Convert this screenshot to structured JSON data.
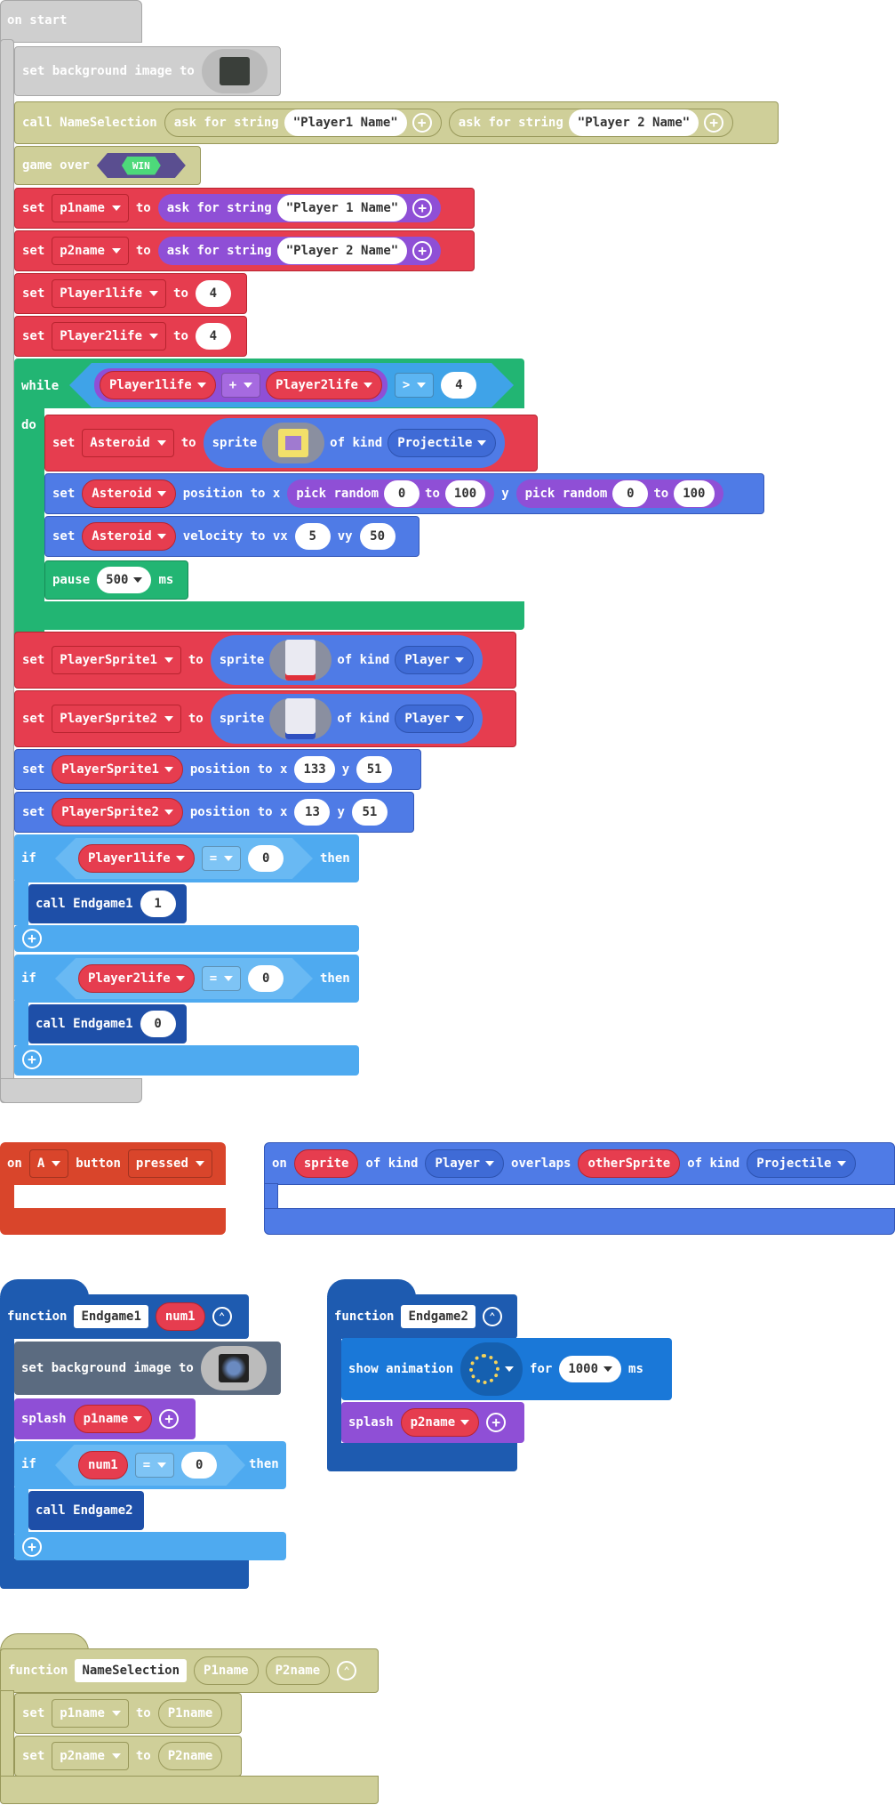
{
  "colors": {
    "events": "#cfcfcf",
    "functions_olive": "#cfcf99",
    "variables": "#e63d4f",
    "text": "#8f4fd6",
    "loops": "#22b573",
    "sprites": "#4f7be6",
    "logic": "#4eaaf0",
    "controller": "#d9452b",
    "function_def": "#1e4fa8"
  },
  "on_start": {
    "label": "on start",
    "bg": {
      "set": "set background image to"
    },
    "call_name": {
      "call": "call NameSelection",
      "ask1": "ask for string",
      "str1": "Player1 Name",
      "ask2": "ask for string",
      "str2": "Player 2 Name"
    },
    "gameover": {
      "label": "game over",
      "win": "WIN"
    },
    "set_p1name": {
      "set": "set",
      "var": "p1name",
      "to": "to",
      "ask": "ask for string",
      "str": "Player 1 Name"
    },
    "set_p2name": {
      "set": "set",
      "var": "p2name",
      "to": "to",
      "ask": "ask for string",
      "str": "Player 2 Name"
    },
    "set_life1": {
      "set": "set",
      "var": "Player1life",
      "to": "to",
      "val": "4"
    },
    "set_life2": {
      "set": "set",
      "var": "Player2life",
      "to": "to",
      "val": "4"
    },
    "while": {
      "label": "while",
      "do": "do",
      "a": "Player1life",
      "op": "+",
      "b": "Player2life",
      "cmp": ">",
      "val": "4",
      "s1": {
        "set": "set",
        "var": "Asteroid",
        "to": "to",
        "sprite": "sprite",
        "ofkind": "of kind",
        "kind": "Projectile"
      },
      "s2": {
        "set": "set",
        "var": "Asteroid",
        "pos": "position to x",
        "pick1": "pick random",
        "a1": "0",
        "to1": "to",
        "b1": "100",
        "y": "y",
        "pick2": "pick random",
        "a2": "0",
        "to2": "to",
        "b2": "100"
      },
      "s3": {
        "set": "set",
        "var": "Asteroid",
        "vel": "velocity to vx",
        "vx": "5",
        "vy": "vy",
        "vyv": "50"
      },
      "s4": {
        "pause": "pause",
        "ms": "500",
        "unit": "ms"
      }
    },
    "ps1": {
      "set": "set",
      "var": "PlayerSprite1",
      "to": "to",
      "sprite": "sprite",
      "ofkind": "of kind",
      "kind": "Player"
    },
    "ps2": {
      "set": "set",
      "var": "PlayerSprite2",
      "to": "to",
      "sprite": "sprite",
      "ofkind": "of kind",
      "kind": "Player"
    },
    "pos1": {
      "set": "set",
      "var": "PlayerSprite1",
      "pos": "position to x",
      "x": "133",
      "y": "y",
      "yv": "51"
    },
    "pos2": {
      "set": "set",
      "var": "PlayerSprite2",
      "pos": "position to x",
      "x": "13",
      "y": "y",
      "yv": "51"
    },
    "if1": {
      "if": "if",
      "var": "Player1life",
      "op": "=",
      "val": "0",
      "then": "then",
      "call": "call Endgame1",
      "arg": "1"
    },
    "if2": {
      "if": "if",
      "var": "Player2life",
      "op": "=",
      "val": "0",
      "then": "then",
      "call": "call Endgame1",
      "arg": "0"
    }
  },
  "on_a": {
    "on": "on",
    "btn": "A",
    "button": "button",
    "evt": "pressed"
  },
  "overlap": {
    "on": "on",
    "sprite": "sprite",
    "ofkind": "of kind",
    "kind1": "Player",
    "overlaps": "overlaps",
    "other": "otherSprite",
    "ofkind2": "of kind",
    "kind2": "Projectile"
  },
  "endgame1": {
    "function": "function",
    "name": "Endgame1",
    "param": "num1",
    "bg": "set background image to",
    "splash": "splash",
    "var": "p1name",
    "if": "if",
    "cond": "num1",
    "op": "=",
    "val": "0",
    "then": "then",
    "call": "call Endgame2"
  },
  "endgame2": {
    "function": "function",
    "name": "Endgame2",
    "show": "show animation",
    "for": "for",
    "ms": "1000",
    "unit": "ms",
    "splash": "splash",
    "var": "p2name"
  },
  "namesel": {
    "function": "function",
    "name": "NameSelection",
    "p1": "P1name",
    "p2": "P2name",
    "set1": "set",
    "var1": "p1name",
    "to1": "to",
    "val1": "P1name",
    "set2": "set",
    "var2": "p2name",
    "to2": "to",
    "val2": "P2name"
  }
}
